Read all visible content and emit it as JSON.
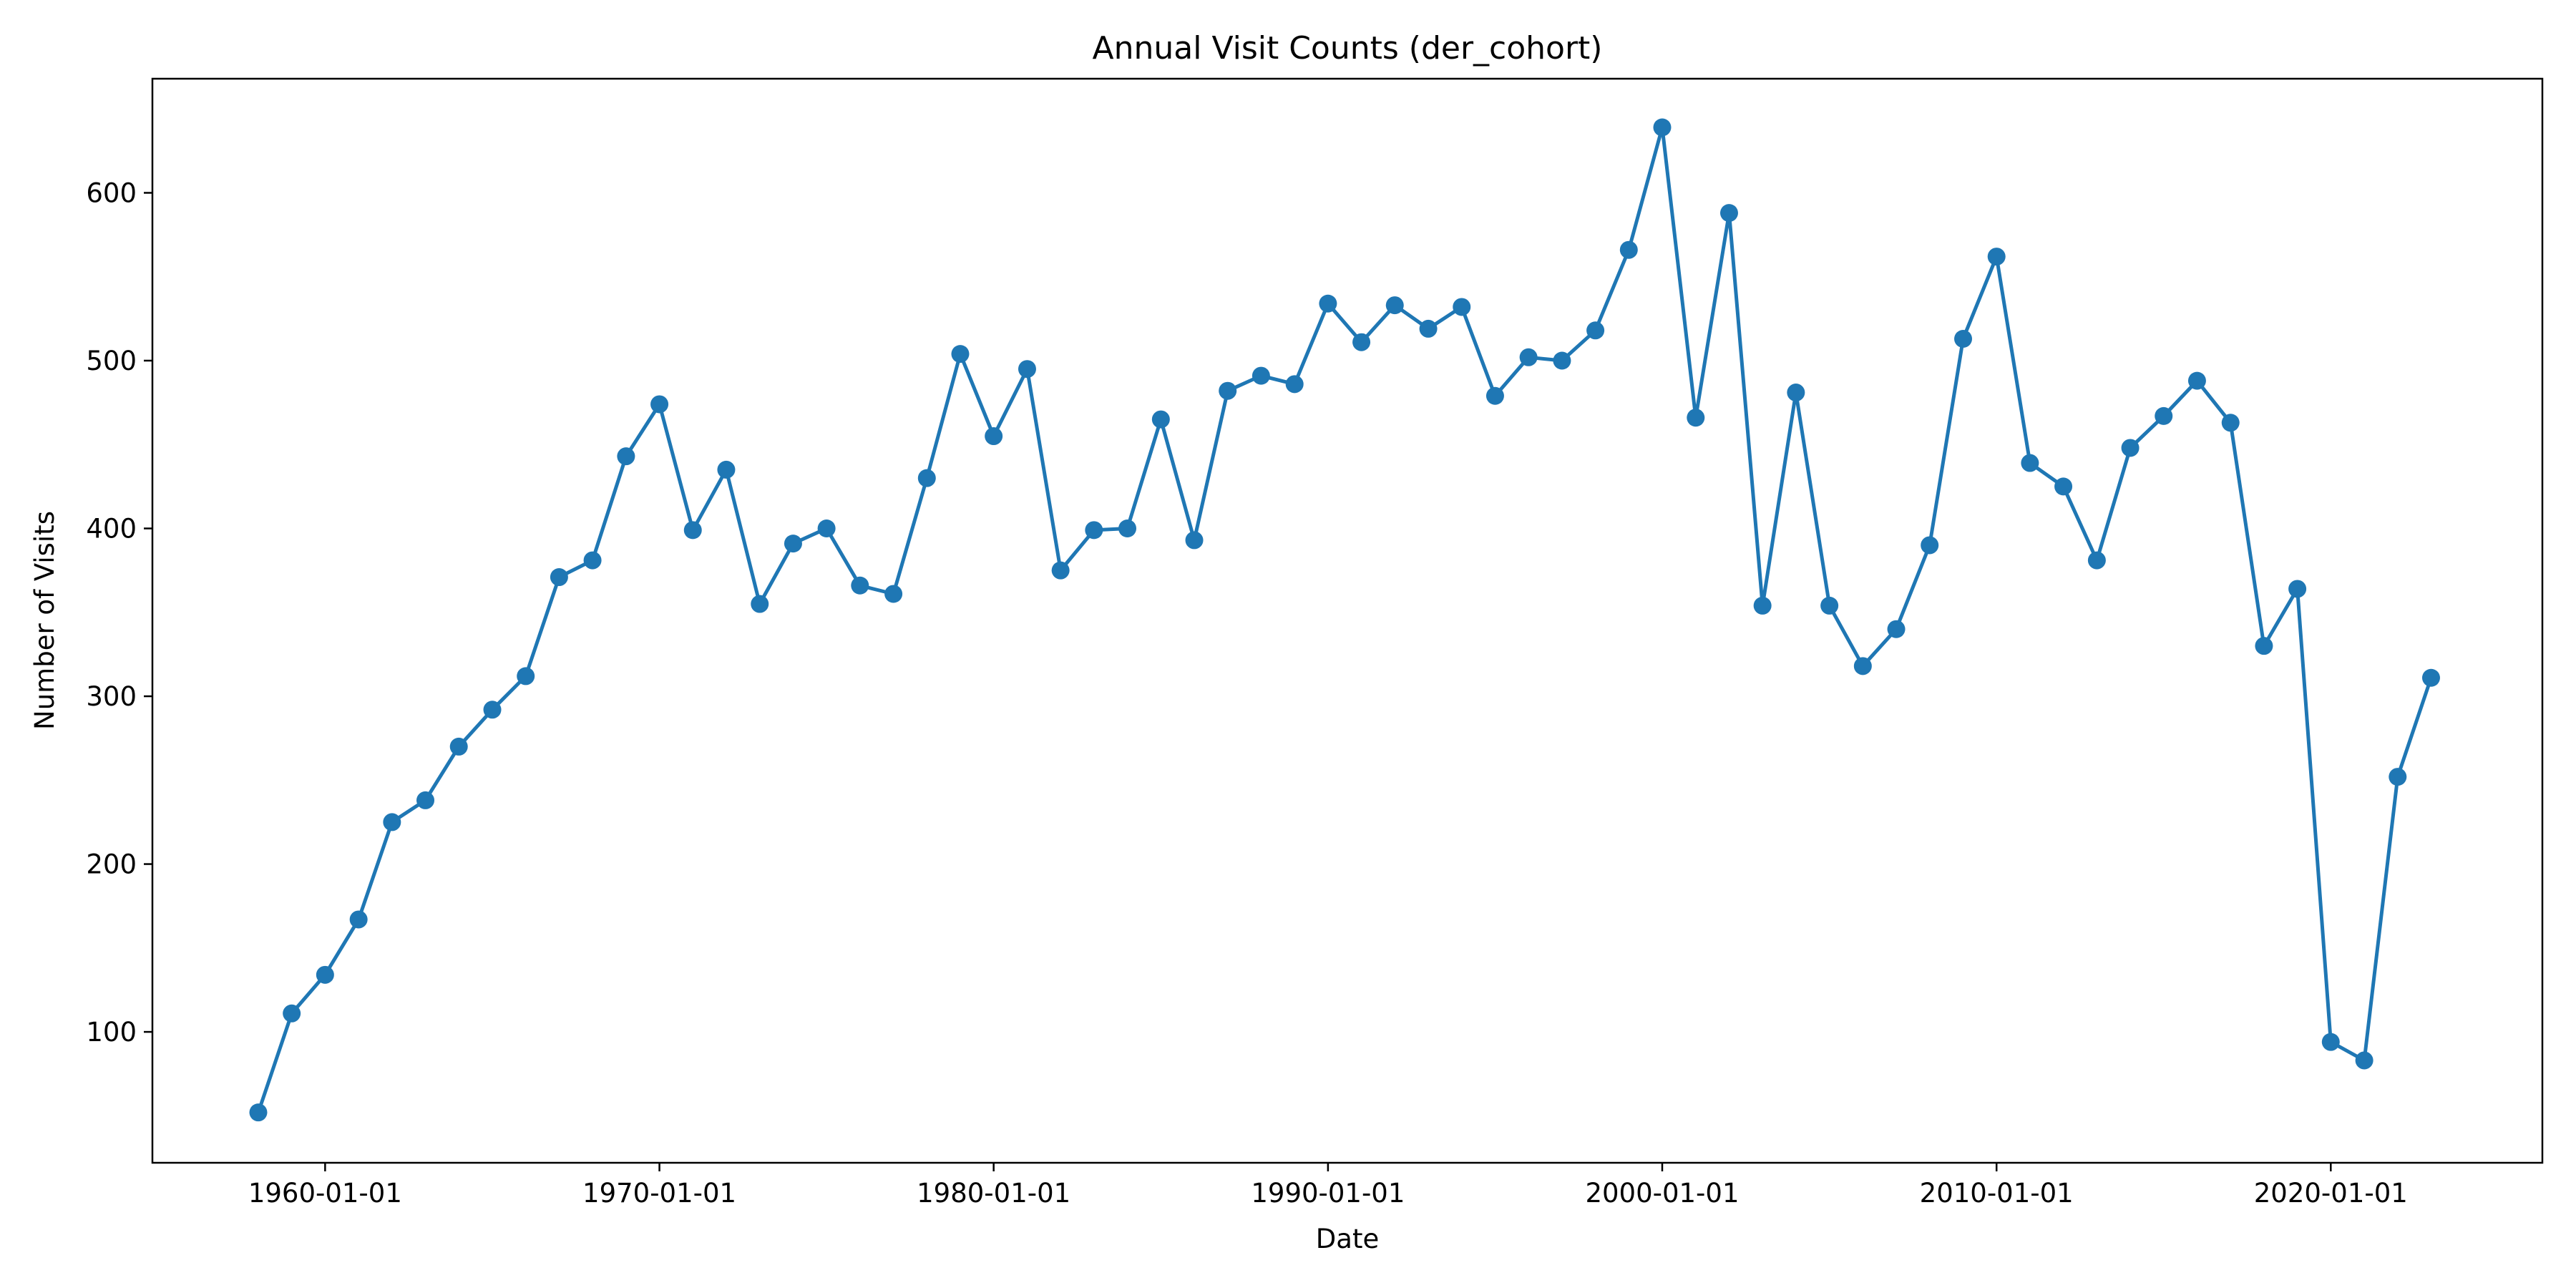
{
  "chart_data": {
    "type": "line",
    "title": "Annual Visit Counts (der_cohort)",
    "xlabel": "Date",
    "ylabel": "Number of Visits",
    "x_tick_labels": [
      "1960-01-01",
      "1970-01-01",
      "1980-01-01",
      "1990-01-01",
      "2000-01-01",
      "2010-01-01",
      "2020-01-01"
    ],
    "x_tick_dates": [
      "1960-01-01",
      "1970-01-01",
      "1980-01-01",
      "1990-01-01",
      "2000-01-01",
      "2010-01-01",
      "2020-01-01"
    ],
    "y_ticks": [
      100,
      200,
      300,
      400,
      500,
      600
    ],
    "xlim": [
      "1954-11-01",
      "2026-05-01"
    ],
    "ylim": [
      22,
      668
    ],
    "grid": false,
    "legend": "none",
    "series": [
      {
        "color": "#1f77b4",
        "marker": "circle",
        "x": [
          "1958-01-01",
          "1959-01-01",
          "1960-01-01",
          "1961-01-01",
          "1962-01-01",
          "1963-01-01",
          "1964-01-01",
          "1965-01-01",
          "1966-01-01",
          "1967-01-01",
          "1968-01-01",
          "1969-01-01",
          "1970-01-01",
          "1971-01-01",
          "1972-01-01",
          "1973-01-01",
          "1974-01-01",
          "1975-01-01",
          "1976-01-01",
          "1977-01-01",
          "1978-01-01",
          "1979-01-01",
          "1980-01-01",
          "1981-01-01",
          "1982-01-01",
          "1983-01-01",
          "1984-01-01",
          "1985-01-01",
          "1986-01-01",
          "1987-01-01",
          "1988-01-01",
          "1989-01-01",
          "1990-01-01",
          "1991-01-01",
          "1992-01-01",
          "1993-01-01",
          "1994-01-01",
          "1995-01-01",
          "1996-01-01",
          "1997-01-01",
          "1998-01-01",
          "1999-01-01",
          "2000-01-01",
          "2001-01-01",
          "2002-01-01",
          "2003-01-01",
          "2004-01-01",
          "2005-01-01",
          "2006-01-01",
          "2007-01-01",
          "2008-01-01",
          "2009-01-01",
          "2010-01-01",
          "2011-01-01",
          "2012-01-01",
          "2013-01-01",
          "2014-01-01",
          "2015-01-01",
          "2016-01-01",
          "2017-01-01",
          "2018-01-01",
          "2019-01-01",
          "2020-01-01",
          "2021-01-01",
          "2022-01-01",
          "2023-01-01"
        ],
        "y": [
          52,
          111,
          134,
          167,
          225,
          238,
          270,
          292,
          312,
          371,
          381,
          443,
          474,
          399,
          435,
          355,
          391,
          400,
          366,
          361,
          430,
          504,
          455,
          495,
          375,
          399,
          400,
          465,
          393,
          482,
          491,
          486,
          534,
          511,
          533,
          519,
          532,
          479,
          502,
          500,
          518,
          566,
          639,
          466,
          588,
          354,
          481,
          354,
          318,
          340,
          390,
          513,
          562,
          439,
          425,
          381,
          448,
          467,
          488,
          463,
          330,
          364,
          94,
          83,
          252,
          311
        ]
      }
    ]
  }
}
